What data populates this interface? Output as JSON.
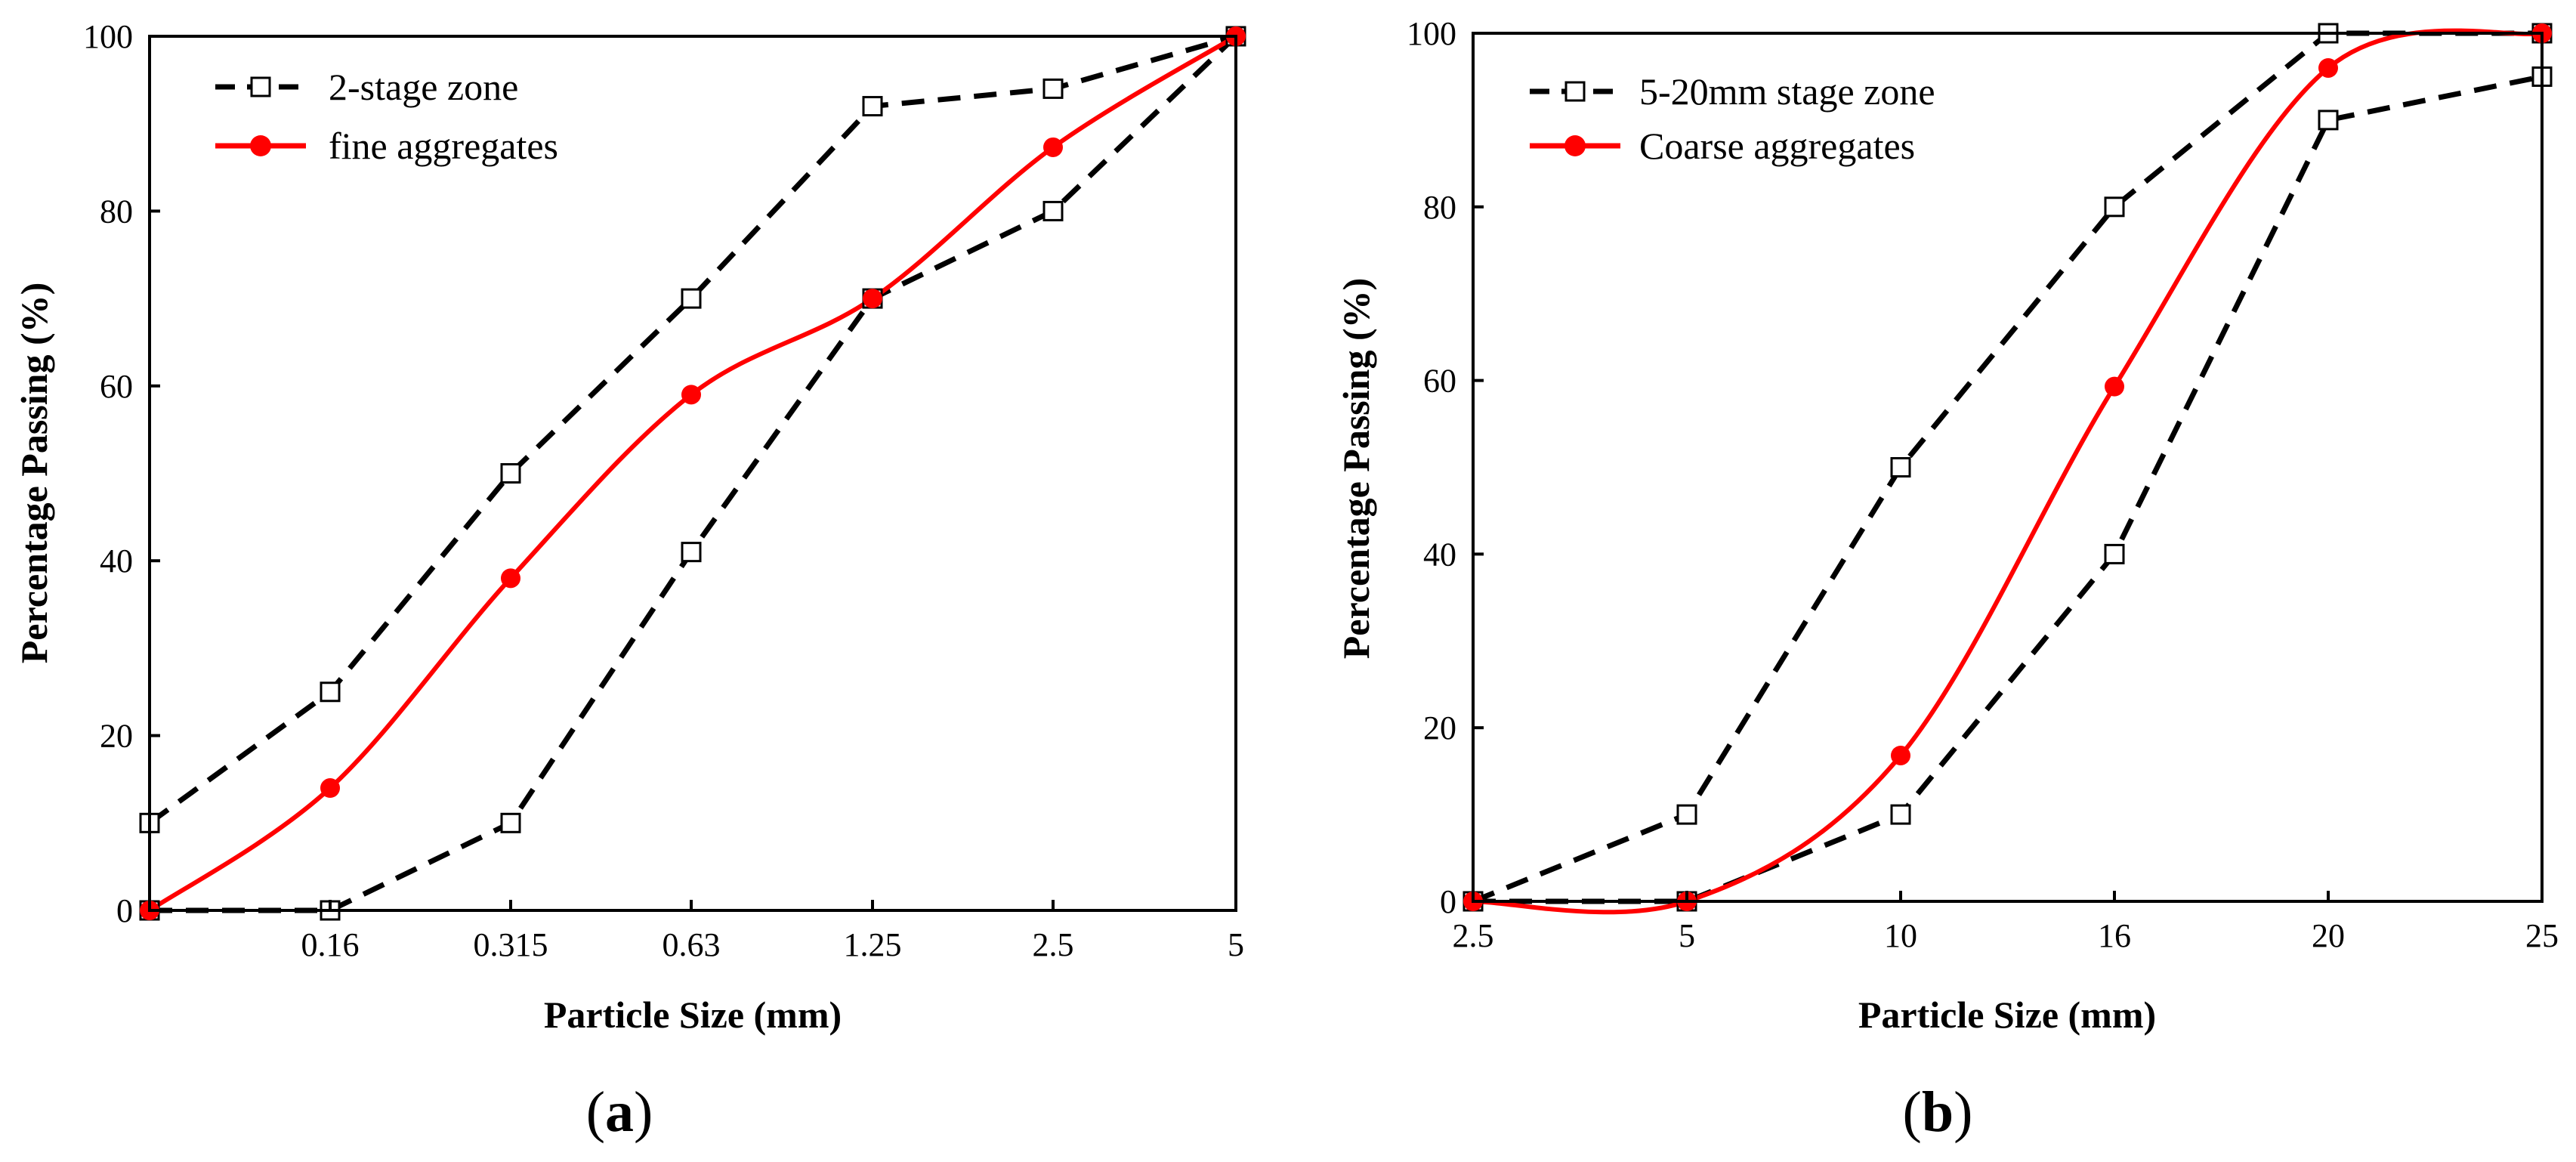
{
  "chart_data": [
    {
      "type": "line",
      "panel_label": "a",
      "xlabel": "Particle Size (mm)",
      "ylabel": "Percentage Passing (%)",
      "ylim": [
        0,
        100
      ],
      "yticks": [
        0,
        20,
        40,
        60,
        80,
        100
      ],
      "grid": false,
      "legend_position": "top-left",
      "x_scale": "categorical",
      "categories": [
        "",
        "0.16",
        "0.315",
        "0.63",
        "1.25",
        "2.5",
        "5"
      ],
      "series": [
        {
          "name": "2-stage zone",
          "style": "dashed-open-square",
          "color": "#000000",
          "upper": [
            10,
            25,
            50,
            70,
            92,
            94,
            100
          ],
          "lower": [
            0,
            0,
            10,
            41,
            70,
            80,
            100
          ]
        },
        {
          "name": "fine aggregates",
          "style": "solid-filled-circle",
          "color": "#ff0000",
          "values": [
            0,
            14,
            38,
            59,
            70,
            87.3,
            100
          ]
        }
      ]
    },
    {
      "type": "line",
      "panel_label": "b",
      "xlabel": "Particle Size (mm)",
      "ylabel": "Percentage Passing (%)",
      "ylim": [
        0,
        100
      ],
      "yticks": [
        0,
        20,
        40,
        60,
        80,
        100
      ],
      "grid": false,
      "legend_position": "top-left",
      "x_scale": "categorical",
      "categories": [
        "2.5",
        "5",
        "10",
        "16",
        "20",
        "25"
      ],
      "series": [
        {
          "name": "5-20mm stage zone",
          "style": "dashed-open-square",
          "color": "#000000",
          "upper": [
            0,
            10,
            50,
            80,
            100,
            100
          ],
          "lower": [
            0,
            0,
            10,
            40,
            90,
            95
          ]
        },
        {
          "name": "Coarse aggregates",
          "style": "solid-filled-circle",
          "color": "#ff0000",
          "values": [
            0,
            0,
            16.8,
            59.3,
            96,
            100
          ]
        }
      ]
    }
  ]
}
